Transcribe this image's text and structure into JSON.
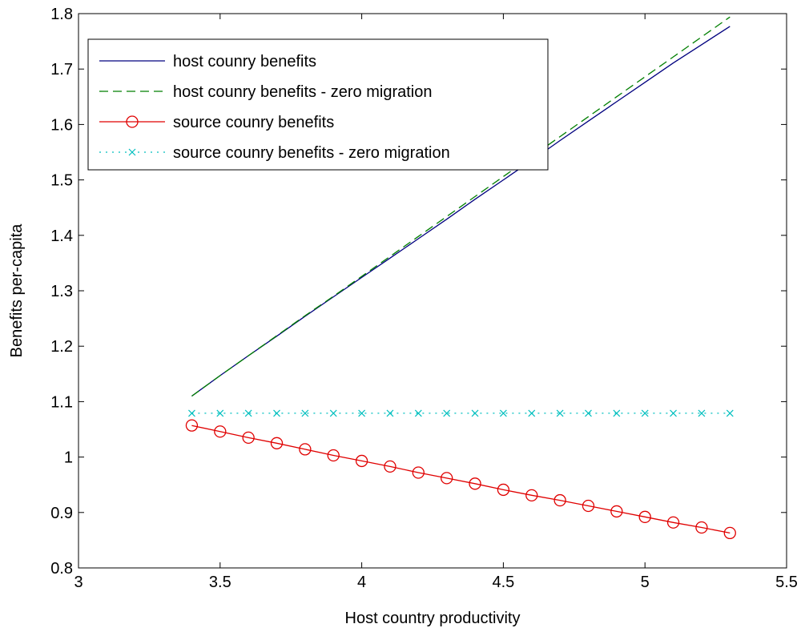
{
  "chart_data": {
    "type": "line",
    "xlabel": "Host country productivity",
    "ylabel": "Benefits per-capita",
    "xlim": [
      3,
      5.5
    ],
    "ylim": [
      0.8,
      1.8
    ],
    "xticks": [
      3,
      3.5,
      4,
      4.5,
      5,
      5.5
    ],
    "xtick_labels": [
      "3",
      "3.5",
      "4",
      "4.5",
      "5",
      "5.5"
    ],
    "yticks": [
      0.8,
      0.9,
      1.0,
      1.1,
      1.2,
      1.3,
      1.4,
      1.5,
      1.6,
      1.7,
      1.8
    ],
    "ytick_labels": [
      "0.8",
      "0.9",
      "1",
      "1.1",
      "1.2",
      "1.3",
      "1.4",
      "1.5",
      "1.6",
      "1.7",
      "1.8"
    ],
    "grid": false,
    "legend_position": "top-left",
    "x": [
      3.4,
      3.5,
      3.6,
      3.7,
      3.8,
      3.9,
      4.0,
      4.1,
      4.2,
      4.3,
      4.4,
      4.5,
      4.6,
      4.7,
      4.8,
      4.9,
      5.0,
      5.1,
      5.2,
      5.3
    ],
    "series": [
      {
        "name": "host counry benefits",
        "color": "#00007f",
        "style": "solid",
        "marker": "none",
        "values": [
          1.11,
          1.147,
          1.183,
          1.218,
          1.254,
          1.289,
          1.324,
          1.359,
          1.394,
          1.429,
          1.465,
          1.5,
          1.535,
          1.571,
          1.606,
          1.641,
          1.676,
          1.711,
          1.744,
          1.777
        ]
      },
      {
        "name": "host counry benefits - zero migration",
        "color": "#007f00",
        "style": "dashed",
        "marker": "none",
        "values": [
          1.11,
          1.147,
          1.183,
          1.219,
          1.255,
          1.29,
          1.326,
          1.362,
          1.398,
          1.434,
          1.47,
          1.506,
          1.542,
          1.578,
          1.614,
          1.65,
          1.686,
          1.722,
          1.758,
          1.794
        ]
      },
      {
        "name": "source counry benefits",
        "color": "#e00000",
        "style": "solid",
        "marker": "circle",
        "values": [
          1.057,
          1.046,
          1.035,
          1.025,
          1.014,
          1.003,
          0.993,
          0.983,
          0.972,
          0.962,
          0.952,
          0.941,
          0.931,
          0.922,
          0.912,
          0.902,
          0.892,
          0.882,
          0.873,
          0.863
        ]
      },
      {
        "name": "source counry benefits - zero migration",
        "color": "#00bfbf",
        "style": "dotted",
        "marker": "x",
        "values": [
          1.079,
          1.079,
          1.079,
          1.079,
          1.079,
          1.079,
          1.079,
          1.079,
          1.079,
          1.079,
          1.079,
          1.079,
          1.079,
          1.079,
          1.079,
          1.079,
          1.079,
          1.079,
          1.079,
          1.079
        ]
      }
    ]
  }
}
